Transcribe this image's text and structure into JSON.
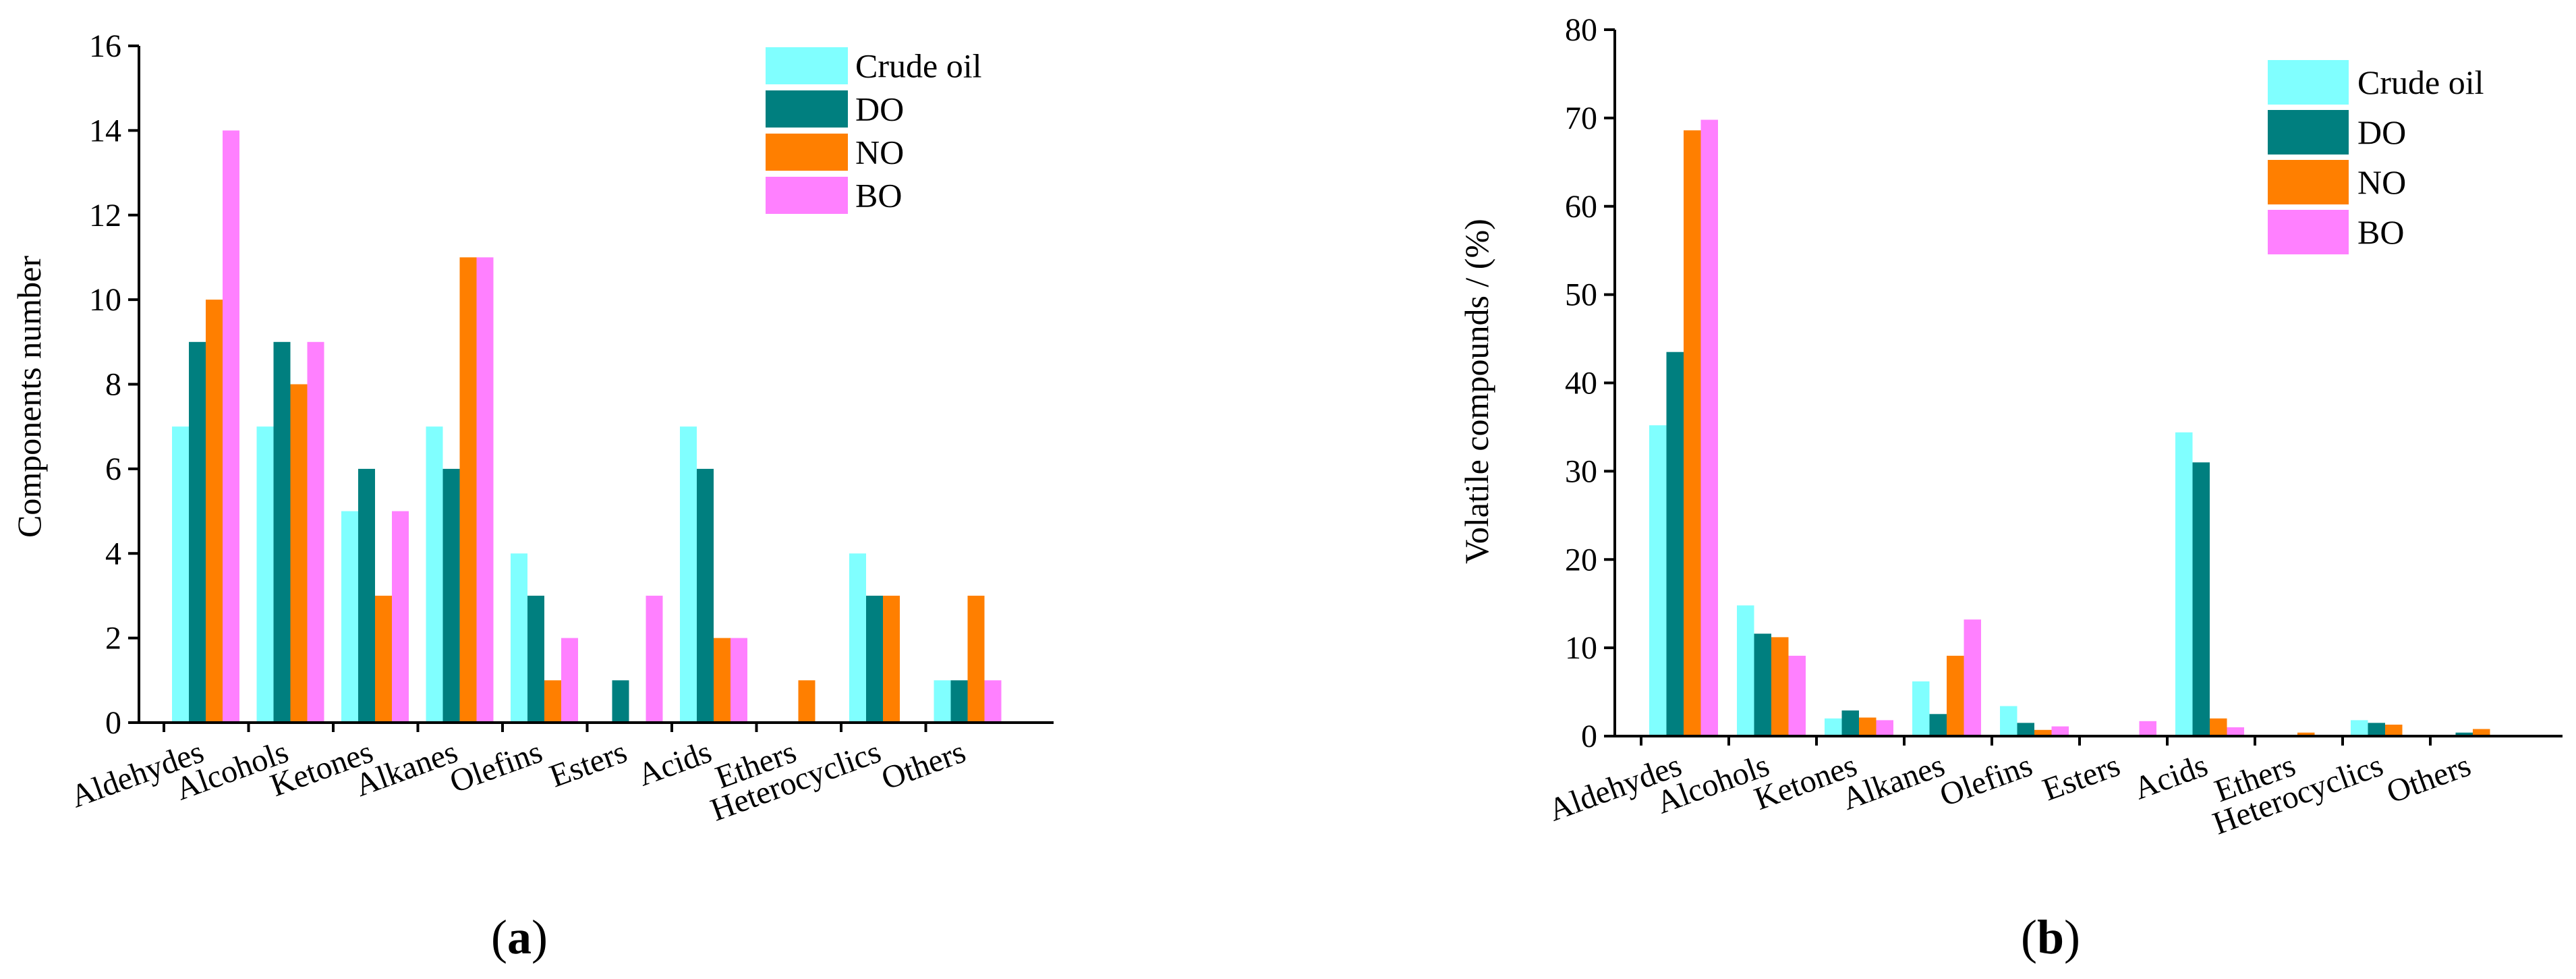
{
  "colors": {
    "Crude oil": "#80FFFF",
    "DO": "#007F7F",
    "NO": "#FF7F00",
    "BO": "#FF80FF"
  },
  "chart_data": [
    {
      "type": "bar",
      "panel_label": "(a)",
      "panel_letter": "a",
      "title": "",
      "xlabel": "",
      "ylabel": "Components number",
      "ylim": [
        0,
        16
      ],
      "yticks": [
        "0",
        "2",
        "4",
        "6",
        "8",
        "10",
        "12",
        "14",
        "16"
      ],
      "categories": [
        "Aldehydes",
        "Alcohols",
        "Ketones",
        "Alkanes",
        "Olefins",
        "Esters",
        "Acids",
        "Ethers",
        "Heterocyclics",
        "Others"
      ],
      "legend_position": "top-right",
      "series": [
        {
          "name": "Crude oil",
          "values": [
            7,
            7,
            5,
            7,
            4,
            0,
            7,
            0,
            4,
            1
          ]
        },
        {
          "name": "DO",
          "values": [
            9,
            9,
            6,
            6,
            3,
            1,
            6,
            0,
            3,
            1
          ]
        },
        {
          "name": "NO",
          "values": [
            10,
            8,
            3,
            11,
            1,
            0,
            2,
            1,
            3,
            3
          ]
        },
        {
          "name": "BO",
          "values": [
            14,
            9,
            5,
            11,
            2,
            3,
            2,
            0,
            0,
            1
          ]
        }
      ]
    },
    {
      "type": "bar",
      "panel_label": "(b)",
      "panel_letter": "b",
      "title": "",
      "xlabel": "",
      "ylabel": "Volatile compounds / (%)",
      "ylim": [
        0,
        80
      ],
      "yticks": [
        "0",
        "10",
        "20",
        "30",
        "40",
        "50",
        "60",
        "70",
        "80"
      ],
      "categories": [
        "Aldehydes",
        "Alcohols",
        "Ketones",
        "Alkanes",
        "Olefins",
        "Esters",
        "Acids",
        "Ethers",
        "Heterocyclics",
        "Others"
      ],
      "legend_position": "top-right",
      "series": [
        {
          "name": "Crude oil",
          "values": [
            35.2,
            14.8,
            2.0,
            6.2,
            3.4,
            0,
            34.4,
            0,
            1.8,
            0
          ]
        },
        {
          "name": "DO",
          "values": [
            43.5,
            11.6,
            2.9,
            2.5,
            1.5,
            0,
            31.0,
            0,
            1.5,
            0.4
          ]
        },
        {
          "name": "NO",
          "values": [
            68.6,
            11.2,
            2.1,
            9.1,
            0.7,
            0,
            2.0,
            0.4,
            1.3,
            0.8
          ]
        },
        {
          "name": "BO",
          "values": [
            69.8,
            9.1,
            1.8,
            13.2,
            1.1,
            1.7,
            1.0,
            0,
            0,
            0
          ]
        }
      ]
    }
  ]
}
